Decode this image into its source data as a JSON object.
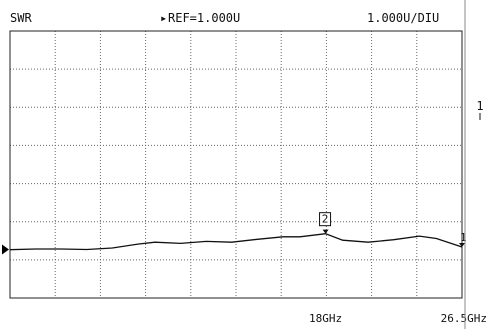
{
  "header": {
    "measurement": "SWR",
    "reference": "REF=1.000U",
    "scale": "1.000U/DIU"
  },
  "side_marker": {
    "label": "1"
  },
  "chart_data": {
    "type": "line",
    "title": "",
    "xlabel": "",
    "ylabel": "SWR",
    "x_tick_labels": [
      "18GHz",
      "26.5GHz"
    ],
    "xlim": [
      0,
      26.5
    ],
    "ylim": [
      -1,
      10
    ],
    "grid": true,
    "series": [
      {
        "x": [
          0.0,
          1.5,
          3.0,
          4.5,
          6.0,
          7.5,
          8.5,
          10.0,
          11.5,
          13.0,
          14.5,
          16.0,
          17.0,
          18.5,
          19.5,
          21.0,
          22.5,
          24.0,
          25.0,
          26.5
        ],
        "y": [
          0.99,
          1.02,
          1.02,
          1.0,
          1.06,
          1.22,
          1.3,
          1.25,
          1.33,
          1.3,
          1.42,
          1.52,
          1.52,
          1.65,
          1.38,
          1.3,
          1.4,
          1.55,
          1.45,
          1.1
        ]
      }
    ],
    "markers": [
      {
        "label": "2",
        "x": 18.5,
        "y": 1.65
      },
      {
        "label": "1",
        "x": 26.5,
        "y": 1.1
      }
    ],
    "reference_marker": {
      "y": 1.0
    }
  }
}
